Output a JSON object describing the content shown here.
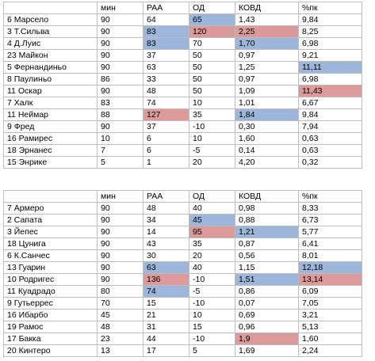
{
  "colors": {
    "blue": "#9db7dc",
    "red": "#dc9a9a"
  },
  "tables": [
    {
      "headers": [
        "",
        "мин",
        "РАА",
        "ОД",
        "КОВД",
        "%пк"
      ],
      "rows": [
        {
          "cells": [
            "6 Марсело",
            "90",
            "64",
            "65",
            "1,43",
            "9,84"
          ],
          "hl": [
            null,
            null,
            null,
            "blue",
            null,
            null
          ]
        },
        {
          "cells": [
            "3 Т.Сильва",
            "90",
            "83",
            "120",
            "2,25",
            "8,25"
          ],
          "hl": [
            null,
            null,
            "blue",
            "red",
            "red",
            null
          ]
        },
        {
          "cells": [
            "4 Д.Луис",
            "90",
            "83",
            "70",
            "1,70",
            "6,98"
          ],
          "hl": [
            null,
            null,
            "blue",
            null,
            "blue",
            null
          ]
        },
        {
          "cells": [
            "23 Майкон",
            "90",
            "37",
            "50",
            "0,97",
            "9,21"
          ],
          "hl": [
            null,
            null,
            null,
            null,
            null,
            null
          ]
        },
        {
          "cells": [
            "5 Фернандиньо",
            "90",
            "63",
            "50",
            "1,25",
            "11,11"
          ],
          "hl": [
            null,
            null,
            null,
            null,
            null,
            "blue"
          ]
        },
        {
          "cells": [
            "8 Паулиньо",
            "86",
            "33",
            "50",
            "0,97",
            "6,98"
          ],
          "hl": [
            null,
            null,
            null,
            null,
            null,
            null
          ]
        },
        {
          "cells": [
            "11 Оскар",
            "90",
            "48",
            "50",
            "1,09",
            "11,43"
          ],
          "hl": [
            null,
            null,
            null,
            null,
            null,
            "red"
          ]
        },
        {
          "cells": [
            "7 Халк",
            "83",
            "74",
            "10",
            "1,01",
            "6,67"
          ],
          "hl": [
            null,
            null,
            null,
            null,
            null,
            null
          ]
        },
        {
          "cells": [
            "11 Неймар",
            "88",
            "127",
            "35",
            "1,84",
            "9,84"
          ],
          "hl": [
            null,
            null,
            "red",
            null,
            "blue",
            null
          ]
        },
        {
          "cells": [
            "9 Фред",
            "90",
            "37",
            "-10",
            "0,30",
            "7,94"
          ],
          "hl": [
            null,
            null,
            null,
            null,
            null,
            null
          ]
        },
        {
          "cells": [
            "16 Рамирес",
            "10",
            "6",
            "10",
            "1,60",
            "0,63"
          ],
          "hl": [
            null,
            null,
            null,
            null,
            null,
            null
          ]
        },
        {
          "cells": [
            "18 Эрнанес",
            "7",
            "6",
            "-5",
            "0,14",
            "0,63"
          ],
          "hl": [
            null,
            null,
            null,
            null,
            null,
            null
          ]
        },
        {
          "cells": [
            "15 Энрике",
            "5",
            "1",
            "20",
            "4,20",
            "0,32"
          ],
          "hl": [
            null,
            null,
            null,
            null,
            null,
            null
          ]
        }
      ]
    },
    {
      "headers": [
        "",
        "мин",
        "РАА",
        "ОД",
        "КОВД",
        "%пк"
      ],
      "rows": [
        {
          "cells": [
            "7 Армеро",
            "90",
            "48",
            "40",
            "0,98",
            "8,33"
          ],
          "hl": [
            null,
            null,
            null,
            null,
            null,
            null
          ]
        },
        {
          "cells": [
            "2 Сапата",
            "90",
            "34",
            "45",
            "0,88",
            "6,73"
          ],
          "hl": [
            null,
            null,
            null,
            "blue",
            null,
            null
          ]
        },
        {
          "cells": [
            "3 Йепес",
            "90",
            "14",
            "95",
            "1,21",
            "5,77"
          ],
          "hl": [
            null,
            null,
            null,
            "red",
            "blue",
            null
          ]
        },
        {
          "cells": [
            "18 Цунига",
            "90",
            "43",
            "35",
            "0,87",
            "6,41"
          ],
          "hl": [
            null,
            null,
            null,
            null,
            null,
            null
          ]
        },
        {
          "cells": [
            "6 К.Санчес",
            "90",
            "30",
            "20",
            "0,56",
            "8,01"
          ],
          "hl": [
            null,
            null,
            null,
            null,
            null,
            null
          ]
        },
        {
          "cells": [
            "13 Гуарин",
            "90",
            "63",
            "40",
            "1,15",
            "12,18"
          ],
          "hl": [
            null,
            null,
            "blue",
            null,
            null,
            "blue"
          ]
        },
        {
          "cells": [
            "10 Родригес",
            "90",
            "136",
            "-10",
            "1,51",
            "13,14"
          ],
          "hl": [
            null,
            null,
            "red",
            null,
            "blue",
            "red"
          ]
        },
        {
          "cells": [
            "11 Куадрадо",
            "80",
            "74",
            "-5",
            "0,86",
            "6,09"
          ],
          "hl": [
            null,
            null,
            "blue",
            null,
            null,
            null
          ]
        },
        {
          "cells": [
            "9 Гутьеррес",
            "70",
            "15",
            "-10",
            "0,07",
            "7,05"
          ],
          "hl": [
            null,
            null,
            null,
            null,
            null,
            null
          ]
        },
        {
          "cells": [
            "16 Ибарбо",
            "45",
            "21",
            "10",
            "0,69",
            "3,21"
          ],
          "hl": [
            null,
            null,
            null,
            null,
            null,
            null
          ]
        },
        {
          "cells": [
            "19 Рамос",
            "48",
            "31",
            "15",
            "0,96",
            "5,13"
          ],
          "hl": [
            null,
            null,
            null,
            null,
            null,
            null
          ]
        },
        {
          "cells": [
            "17 Бакка",
            "23",
            "44",
            "-10",
            "1,9",
            "1,60"
          ],
          "hl": [
            null,
            null,
            null,
            null,
            "red",
            null
          ]
        },
        {
          "cells": [
            "20 Кинтеро",
            "13",
            "17",
            "5",
            "1,69",
            "2,24"
          ],
          "hl": [
            null,
            null,
            null,
            null,
            null,
            null
          ]
        }
      ]
    }
  ]
}
